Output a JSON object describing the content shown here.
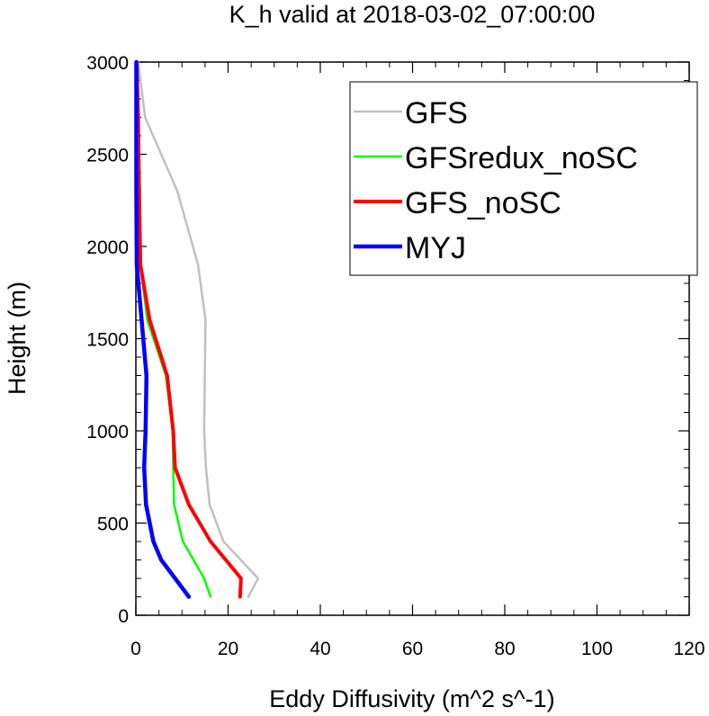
{
  "chart_data": {
    "type": "line",
    "title": "K_h valid at 2018-03-02_07:00:00",
    "xlabel": "Eddy Diffusivity (m^2 s^-1)",
    "ylabel": "Height (m)",
    "xlim": [
      0,
      120
    ],
    "ylim": [
      0,
      3000
    ],
    "xticks": [
      "0",
      "20",
      "40",
      "60",
      "80",
      "100",
      "120"
    ],
    "yticks": [
      "0",
      "500",
      "1000",
      "1500",
      "2000",
      "2500",
      "3000"
    ],
    "grid": false,
    "legend_position": "top-right",
    "series": [
      {
        "name": "GFS",
        "color": "#c0c0c0",
        "points": [
          [
            24.4,
            100
          ],
          [
            26.5,
            200
          ],
          [
            19,
            400
          ],
          [
            16,
            600
          ],
          [
            15.2,
            800
          ],
          [
            14.8,
            1000
          ],
          [
            14.9,
            1200
          ],
          [
            15.1,
            1600
          ],
          [
            13.5,
            1900
          ],
          [
            9,
            2300
          ],
          [
            2,
            2700
          ],
          [
            0.5,
            3000
          ]
        ]
      },
      {
        "name": "GFSredux_noSC",
        "color": "#00ff00",
        "points": [
          [
            16.2,
            100
          ],
          [
            14.8,
            200
          ],
          [
            10.2,
            400
          ],
          [
            8.3,
            600
          ],
          [
            8.1,
            800
          ],
          [
            8,
            1000
          ],
          [
            6.5,
            1300
          ],
          [
            2.5,
            1600
          ],
          [
            1,
            1900
          ],
          [
            0.9,
            2300
          ],
          [
            0.5,
            2700
          ],
          [
            0.3,
            3000
          ]
        ]
      },
      {
        "name": "GFS_noSC",
        "color": "#ff0000",
        "points": [
          [
            22.6,
            100
          ],
          [
            22.8,
            200
          ],
          [
            16.2,
            400
          ],
          [
            11.5,
            600
          ],
          [
            8.5,
            800
          ],
          [
            8.1,
            1000
          ],
          [
            6.8,
            1300
          ],
          [
            3,
            1600
          ],
          [
            1,
            1900
          ],
          [
            0.7,
            2300
          ],
          [
            0.5,
            2700
          ],
          [
            0.2,
            3000
          ]
        ]
      },
      {
        "name": "MYJ",
        "color": "#0000ff",
        "points": [
          [
            11.5,
            100
          ],
          [
            8.5,
            200
          ],
          [
            5.5,
            300
          ],
          [
            3.8,
            400
          ],
          [
            2.2,
            600
          ],
          [
            1.8,
            800
          ],
          [
            2.1,
            1000
          ],
          [
            2.3,
            1300
          ],
          [
            0.2,
            1900
          ],
          [
            0.1,
            2300
          ],
          [
            0.1,
            2700
          ],
          [
            0.1,
            3000
          ]
        ]
      }
    ]
  }
}
